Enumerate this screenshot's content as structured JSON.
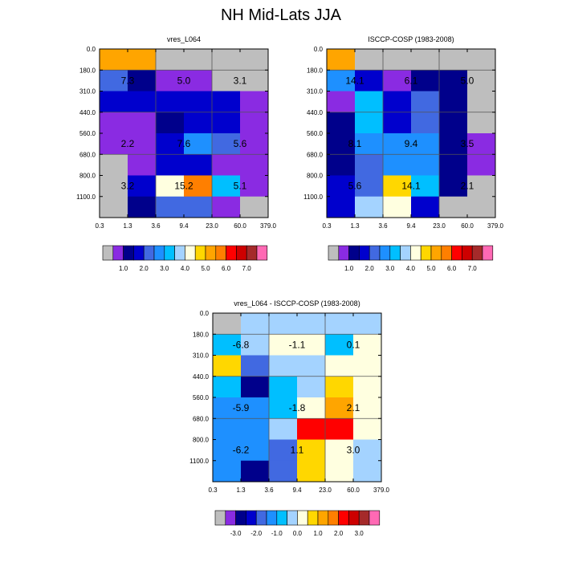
{
  "figure_title": "NH Mid-Lats JJA",
  "chart_data": [
    {
      "type": "heatmap",
      "title": "vres_L064",
      "x_ticks": [
        "0.3",
        "1.3",
        "3.6",
        "9.4",
        "23.0",
        "60.0",
        "379.0"
      ],
      "y_ticks": [
        "0.0",
        "180.0",
        "310.0",
        "440.0",
        "560.0",
        "680.0",
        "800.0",
        "1100.0"
      ],
      "colorbar": {
        "colors": [
          "#bebebe",
          "#8a2be2",
          "#00008b",
          "#0000cd",
          "#4169e1",
          "#1e90ff",
          "#00bfff",
          "#a4d3ff",
          "#ffffe0",
          "#ffd700",
          "#ffa500",
          "#ff7f00",
          "#ff0000",
          "#cd0000",
          "#a52a2a",
          "#ff69b4"
        ],
        "labels": [
          "1.0",
          "2.0",
          "3.0",
          "4.0",
          "5.0",
          "6.0",
          "7.0"
        ],
        "label_positions": [
          2,
          4,
          6,
          8,
          10,
          12,
          14
        ]
      },
      "cells": [
        [
          10,
          10,
          0,
          0,
          0,
          0
        ],
        [
          4,
          2,
          1,
          1,
          0,
          0
        ],
        [
          3,
          3,
          3,
          3,
          3,
          1
        ],
        [
          1,
          1,
          2,
          3,
          3,
          1
        ],
        [
          1,
          1,
          3,
          5,
          4,
          1
        ],
        [
          0,
          1,
          3,
          3,
          1,
          1
        ],
        [
          0,
          3,
          8,
          11,
          6,
          1
        ],
        [
          0,
          2,
          4,
          4,
          1,
          0
        ]
      ],
      "block_values": [
        [
          "7.3",
          "5.0",
          "3.1"
        ],
        [
          "2.2",
          "7.6",
          "5.6"
        ],
        [
          "3.2",
          "15.2",
          "5.1"
        ]
      ]
    },
    {
      "type": "heatmap",
      "title": "ISCCP-COSP (1983-2008)",
      "x_ticks": [
        "0.3",
        "1.3",
        "3.6",
        "9.4",
        "23.0",
        "60.0",
        "379.0"
      ],
      "y_ticks": [
        "0.0",
        "180.0",
        "310.0",
        "440.0",
        "560.0",
        "680.0",
        "800.0",
        "1100.0"
      ],
      "colorbar": {
        "colors": [
          "#bebebe",
          "#8a2be2",
          "#00008b",
          "#0000cd",
          "#4169e1",
          "#1e90ff",
          "#00bfff",
          "#a4d3ff",
          "#ffffe0",
          "#ffd700",
          "#ffa500",
          "#ff7f00",
          "#ff0000",
          "#cd0000",
          "#a52a2a",
          "#ff69b4"
        ],
        "labels": [
          "1.0",
          "2.0",
          "3.0",
          "4.0",
          "5.0",
          "6.0",
          "7.0"
        ],
        "label_positions": [
          2,
          4,
          6,
          8,
          10,
          12,
          14
        ]
      },
      "cells": [
        [
          10,
          0,
          0,
          0,
          0,
          0
        ],
        [
          5,
          3,
          1,
          2,
          2,
          0
        ],
        [
          1,
          6,
          3,
          4,
          2,
          0
        ],
        [
          2,
          6,
          3,
          4,
          2,
          0
        ],
        [
          2,
          5,
          5,
          5,
          2,
          1
        ],
        [
          2,
          4,
          5,
          5,
          2,
          1
        ],
        [
          3,
          4,
          9,
          6,
          2,
          0
        ],
        [
          3,
          7,
          8,
          3,
          0,
          0
        ]
      ],
      "block_values": [
        [
          "14.1",
          "6.1",
          "5.0"
        ],
        [
          "8.1",
          "9.4",
          "3.5"
        ],
        [
          "5.6",
          "14.1",
          "2.1"
        ]
      ]
    },
    {
      "type": "heatmap",
      "title": "vres_L064 - ISCCP-COSP (1983-2008)",
      "x_ticks": [
        "0.3",
        "1.3",
        "3.6",
        "9.4",
        "23.0",
        "60.0",
        "379.0"
      ],
      "y_ticks": [
        "0.0",
        "180.0",
        "310.0",
        "440.0",
        "560.0",
        "680.0",
        "800.0",
        "1100.0"
      ],
      "colorbar": {
        "colors": [
          "#bebebe",
          "#8a2be2",
          "#00008b",
          "#0000cd",
          "#4169e1",
          "#1e90ff",
          "#00bfff",
          "#a4d3ff",
          "#ffffe0",
          "#ffd700",
          "#ffa500",
          "#ff7f00",
          "#ff0000",
          "#cd0000",
          "#a52a2a",
          "#ff69b4"
        ],
        "labels": [
          "-3.0",
          "-2.0",
          "-1.0",
          "0.0",
          "1.0",
          "2.0",
          "3.0"
        ],
        "label_positions": [
          2,
          4,
          6,
          8,
          10,
          12,
          14
        ]
      },
      "cells": [
        [
          0,
          7,
          7,
          7,
          7,
          7
        ],
        [
          6,
          7,
          8,
          8,
          6,
          8
        ],
        [
          9,
          4,
          7,
          7,
          8,
          8
        ],
        [
          6,
          2,
          6,
          7,
          9,
          8
        ],
        [
          5,
          5,
          6,
          8,
          10,
          8
        ],
        [
          5,
          5,
          7,
          12,
          12,
          8
        ],
        [
          5,
          5,
          4,
          9,
          8,
          7
        ],
        [
          5,
          2,
          4,
          9,
          8,
          7
        ]
      ],
      "block_values": [
        [
          "-6.8",
          "-1.1",
          "0.1"
        ],
        [
          "-5.9",
          "-1.8",
          "2.1"
        ],
        [
          "-6.2",
          "1.1",
          "3.0"
        ]
      ]
    }
  ]
}
